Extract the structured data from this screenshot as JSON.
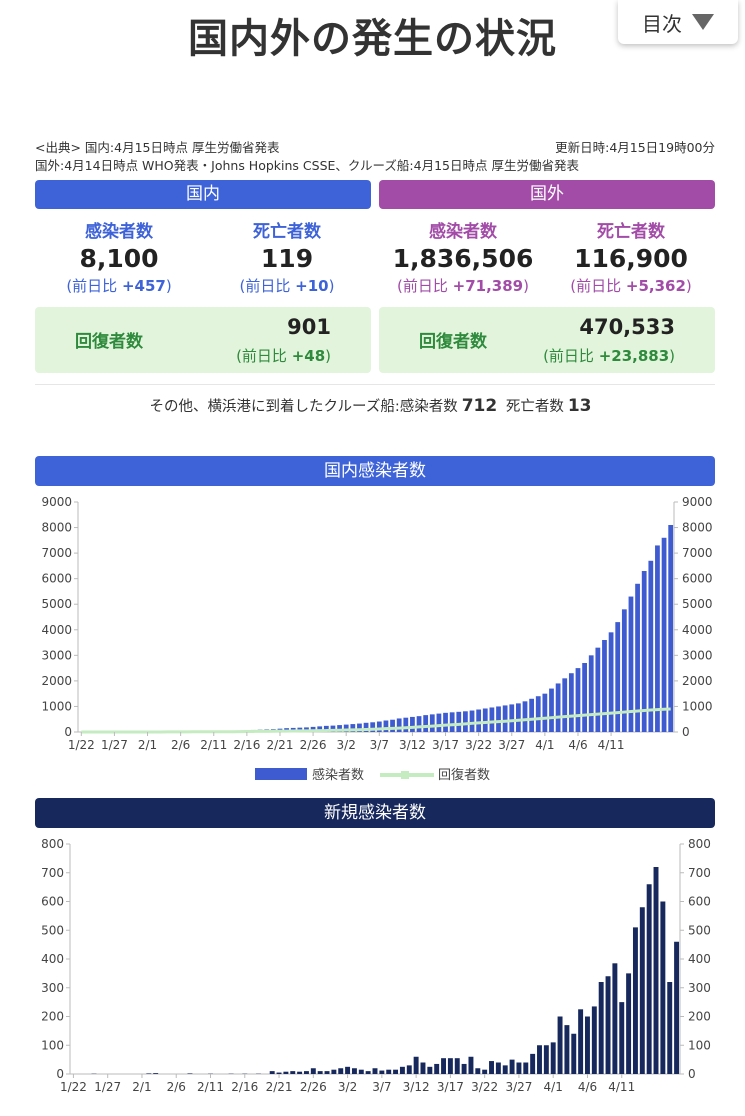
{
  "header": {
    "title": "国内外の発生の状況",
    "toc_label": "目次"
  },
  "source": {
    "line1": "<出典> 国内:4月15日時点 厚生労働省発表",
    "line2": "国外:4月14日時点 WHO発表・Johns Hopkins CSSE、クルーズ船:4月15日時点 厚生労働省発表",
    "updated": "更新日時:4月15日19時00分"
  },
  "domestic": {
    "header": "国内",
    "infected_label": "感染者数",
    "infected_value": "8,100",
    "deaths_label": "死亡者数",
    "deaths_value": "119",
    "delta_prefix": "(前日比 ",
    "delta_suffix": ")",
    "infected_delta": "+457",
    "deaths_delta": "+10",
    "recovered_label": "回復者数",
    "recovered_value": "901",
    "recovered_delta": "+48"
  },
  "international": {
    "header": "国外",
    "infected_label": "感染者数",
    "infected_value": "1,836,506",
    "deaths_label": "死亡者数",
    "deaths_value": "116,900",
    "delta_prefix": "(前日比 ",
    "delta_suffix": ")",
    "infected_delta": "+71,389",
    "deaths_delta": "+5,362",
    "recovered_label": "回復者数",
    "recovered_value": "470,533",
    "recovered_delta": "+23,883"
  },
  "cruise": {
    "text": "その他、横浜港に到着したクルーズ船:感染者数",
    "infected": "712",
    "deaths_label": "死亡者数",
    "deaths": "13"
  },
  "colors": {
    "domestic": "#3e63d8",
    "international": "#a24ca8",
    "recovered_bg": "#e3f4dc",
    "recovered_text": "#2e8a3c",
    "bar_blue": "#3e5bd0",
    "recovered_line": "#c5ebc0",
    "navy": "#17285c"
  },
  "chart_data": [
    {
      "type": "bar",
      "title": "国内感染者数",
      "ylim": [
        0,
        9000
      ],
      "yticks": [
        0,
        1000,
        2000,
        3000,
        4000,
        5000,
        6000,
        7000,
        8000,
        9000
      ],
      "grid": false,
      "legend_position": "bottom",
      "x_tick_labels": [
        "1/22",
        "1/27",
        "2/1",
        "2/6",
        "2/11",
        "2/16",
        "2/21",
        "2/26",
        "3/2",
        "3/7",
        "3/12",
        "3/17",
        "3/22",
        "3/27",
        "4/1",
        "4/6",
        "4/11"
      ],
      "x_tick_every": 5,
      "series": [
        {
          "name": "感染者数",
          "kind": "bar",
          "values": [
            0,
            0,
            0,
            0,
            0,
            0,
            0,
            0,
            0,
            0,
            15,
            17,
            20,
            20,
            20,
            20,
            20,
            25,
            26,
            28,
            30,
            33,
            40,
            45,
            50,
            60,
            80,
            90,
            100,
            110,
            130,
            150,
            160,
            170,
            180,
            200,
            220,
            240,
            250,
            270,
            290,
            310,
            330,
            360,
            380,
            410,
            450,
            480,
            530,
            560,
            590,
            620,
            660,
            690,
            720,
            750,
            770,
            790,
            810,
            840,
            880,
            920,
            960,
            1000,
            1040,
            1080,
            1120,
            1200,
            1300,
            1400,
            1500,
            1700,
            1900,
            2100,
            2300,
            2500,
            2700,
            3000,
            3300,
            3600,
            3900,
            4300,
            4800,
            5300,
            5800,
            6300,
            6700,
            7300,
            7600,
            8100
          ]
        },
        {
          "name": "回復者数",
          "kind": "line",
          "values": [
            0,
            0,
            0,
            0,
            0,
            0,
            0,
            0,
            0,
            0,
            1,
            1,
            1,
            4,
            4,
            5,
            5,
            9,
            9,
            9,
            12,
            12,
            12,
            12,
            16,
            20,
            22,
            24,
            24,
            30,
            32,
            32,
            40,
            43,
            45,
            50,
            55,
            57,
            66,
            70,
            76,
            85,
            90,
            100,
            110,
            118,
            130,
            140,
            150,
            165,
            180,
            200,
            215,
            230,
            250,
            270,
            285,
            300,
            320,
            340,
            355,
            370,
            390,
            405,
            420,
            440,
            460,
            480,
            500,
            520,
            540,
            560,
            580,
            600,
            620,
            640,
            660,
            680,
            700,
            720,
            740,
            760,
            780,
            800,
            820,
            840,
            860,
            875,
            890,
            901
          ]
        }
      ]
    },
    {
      "type": "bar",
      "title": "新規感染者数",
      "ylim": [
        0,
        800
      ],
      "yticks": [
        0,
        100,
        200,
        300,
        400,
        500,
        600,
        700,
        800
      ],
      "grid": false,
      "x_tick_labels": [
        "1/22",
        "1/27",
        "2/1",
        "2/6",
        "2/11",
        "2/16",
        "2/21",
        "2/26",
        "3/2",
        "3/7",
        "3/12",
        "3/17",
        "3/22",
        "3/27",
        "4/1",
        "4/6",
        "4/11"
      ],
      "x_tick_every": 5,
      "series": [
        {
          "name": "新規感染者数",
          "values": [
            0,
            0,
            0,
            1,
            0,
            0,
            0,
            0,
            0,
            0,
            0,
            2,
            3,
            0,
            0,
            0,
            0,
            2,
            0,
            0,
            1,
            0,
            0,
            1,
            0,
            1,
            0,
            1,
            0,
            10,
            5,
            8,
            10,
            8,
            10,
            20,
            10,
            10,
            15,
            20,
            25,
            20,
            15,
            10,
            20,
            12,
            15,
            15,
            25,
            30,
            60,
            40,
            25,
            35,
            55,
            55,
            55,
            35,
            60,
            20,
            15,
            45,
            40,
            30,
            50,
            40,
            40,
            70,
            100,
            100,
            110,
            200,
            170,
            140,
            225,
            200,
            235,
            320,
            340,
            385,
            250,
            350,
            510,
            580,
            660,
            720,
            600,
            320,
            460
          ]
        }
      ]
    }
  ]
}
